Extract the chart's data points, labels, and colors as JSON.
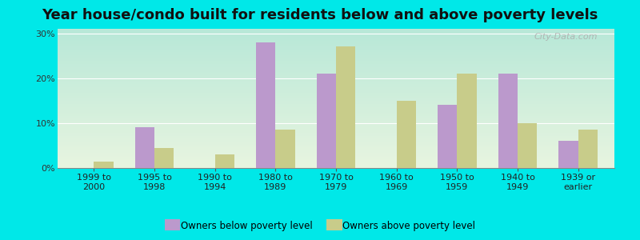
{
  "title": "Year house/condo built for residents below and above poverty levels",
  "categories": [
    "1999 to\n2000",
    "1995 to\n1998",
    "1990 to\n1994",
    "1980 to\n1989",
    "1970 to\n1979",
    "1960 to\n1969",
    "1950 to\n1959",
    "1940 to\n1949",
    "1939 or\nearlier"
  ],
  "below_poverty": [
    0,
    9.0,
    0,
    28.0,
    21.0,
    0,
    14.0,
    21.0,
    6.0
  ],
  "above_poverty": [
    1.5,
    4.5,
    3.0,
    8.5,
    27.0,
    15.0,
    21.0,
    10.0,
    8.5
  ],
  "below_color": "#bb99cc",
  "above_color": "#c8cc8a",
  "bg_grad_top": "#b8e8d8",
  "bg_grad_bottom": "#e8f5e0",
  "outer_bg": "#00e8e8",
  "grid_color": "#ffffff",
  "ylabel_ticks": [
    "0%",
    "10%",
    "20%",
    "30%"
  ],
  "ytick_vals": [
    0,
    10,
    20,
    30
  ],
  "ylim": [
    0,
    31
  ],
  "title_fontsize": 13,
  "tick_fontsize": 8,
  "legend_below": "Owners below poverty level",
  "legend_above": "Owners above poverty level",
  "watermark": "City-Data.com"
}
